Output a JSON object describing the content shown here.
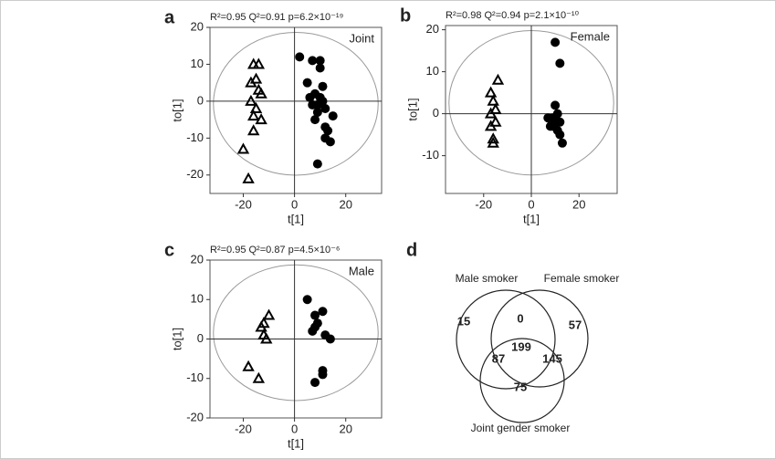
{
  "chart_data": [
    {
      "type": "scatter",
      "panel": "a",
      "title": "R²=0.95 Q²=0.91 p=6.2×10⁻¹⁹",
      "annotation": "Joint",
      "x_label": "t[1]",
      "y_label": "to[1]",
      "xlim": [
        -33,
        34
      ],
      "ylim": [
        -25,
        20
      ],
      "xticks": [
        -20,
        0,
        20
      ],
      "yticks": [
        -20,
        -10,
        0,
        10,
        20
      ],
      "series": [
        {
          "marker": "triangle",
          "color": "#000000",
          "x": [
            -16,
            -14,
            -17,
            -15,
            -14,
            -13,
            -17,
            -15,
            -16,
            -13,
            -16,
            -20,
            -18
          ],
          "values": [
            10,
            10,
            5,
            6,
            3,
            2,
            0,
            -2,
            -4,
            -5,
            -8,
            -13,
            -21
          ]
        },
        {
          "marker": "circle",
          "color": "#000000",
          "x": [
            2,
            7,
            10,
            5,
            10,
            6,
            8,
            10,
            11,
            7,
            9,
            12,
            8,
            15,
            13,
            12,
            14,
            9,
            11,
            9,
            12
          ],
          "values": [
            12,
            11,
            11,
            5,
            9,
            1,
            2,
            1,
            0,
            -1,
            -3,
            -2,
            -5,
            -4,
            -8,
            -10,
            -11,
            -17,
            4,
            -1,
            -7
          ]
        }
      ]
    },
    {
      "type": "scatter",
      "panel": "b",
      "title": "R²=0.98 Q²=0.94 p=2.1×10⁻¹⁰",
      "annotation": "Female",
      "x_label": "t[1]",
      "y_label": "to[1]",
      "xlim": [
        -36,
        36
      ],
      "ylim": [
        -19,
        21
      ],
      "xticks": [
        -20,
        0,
        20
      ],
      "yticks": [
        -10,
        0,
        10,
        20
      ],
      "series": [
        {
          "marker": "triangle",
          "color": "#000000",
          "x": [
            -17,
            -16,
            -14,
            -15,
            -17,
            -15,
            -17,
            -16,
            -16
          ],
          "values": [
            5,
            3,
            8,
            1,
            0,
            -2,
            -3,
            -6,
            -7
          ]
        },
        {
          "marker": "circle",
          "color": "#000000",
          "x": [
            10,
            12,
            10,
            7,
            9,
            11,
            10,
            12,
            9,
            11,
            12,
            13,
            8
          ],
          "values": [
            17,
            12,
            2,
            -1,
            -1,
            0,
            -2,
            -2,
            -3,
            -4,
            -5,
            -7,
            -3
          ]
        }
      ]
    },
    {
      "type": "scatter",
      "panel": "c",
      "title": "R²=0.95 Q²=0.87 p=4.5×10⁻⁶",
      "annotation": "Male",
      "x_label": "t[1]",
      "y_label": "to[1]",
      "xlim": [
        -33,
        34
      ],
      "ylim": [
        -20,
        20
      ],
      "xticks": [
        -20,
        0,
        20
      ],
      "yticks": [
        -20,
        -10,
        0,
        10,
        20
      ],
      "series": [
        {
          "marker": "triangle",
          "color": "#000000",
          "x": [
            -10,
            -12,
            -13,
            -12,
            -11,
            -18,
            -14
          ],
          "values": [
            6,
            4,
            3,
            1,
            0,
            -7,
            -10
          ]
        },
        {
          "marker": "circle",
          "color": "#000000",
          "x": [
            5,
            8,
            11,
            9,
            8,
            12,
            14,
            11,
            11,
            8,
            7
          ],
          "values": [
            10,
            6,
            7,
            4,
            3,
            1,
            0,
            -8,
            -9,
            -11,
            2
          ]
        }
      ]
    },
    {
      "type": "venn",
      "panel": "d",
      "sets": [
        "Male  smoker",
        "Female smoker",
        "Joint gender smoker"
      ],
      "values": [
        15,
        0,
        57,
        199,
        87,
        145,
        75
      ]
    }
  ]
}
